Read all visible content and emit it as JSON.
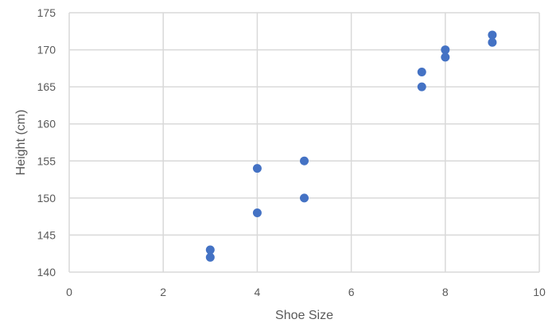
{
  "chart_data": {
    "type": "scatter",
    "title": "",
    "xlabel": "Shoe Size",
    "ylabel": "Height (cm)",
    "xlim": [
      0,
      10
    ],
    "ylim": [
      140,
      175
    ],
    "x_ticks": [
      0,
      2,
      4,
      6,
      8,
      10
    ],
    "y_ticks": [
      140,
      145,
      150,
      155,
      160,
      165,
      170,
      175
    ],
    "grid": true,
    "legend": "none",
    "series": [
      {
        "color": "#4472c4",
        "points": [
          {
            "x": 3,
            "y": 142
          },
          {
            "x": 3,
            "y": 143
          },
          {
            "x": 4,
            "y": 148
          },
          {
            "x": 4,
            "y": 154
          },
          {
            "x": 5,
            "y": 150
          },
          {
            "x": 5,
            "y": 155
          },
          {
            "x": 7.5,
            "y": 165
          },
          {
            "x": 7.5,
            "y": 167
          },
          {
            "x": 8,
            "y": 169
          },
          {
            "x": 8,
            "y": 170
          },
          {
            "x": 9,
            "y": 171
          },
          {
            "x": 9,
            "y": 172
          }
        ]
      }
    ]
  }
}
